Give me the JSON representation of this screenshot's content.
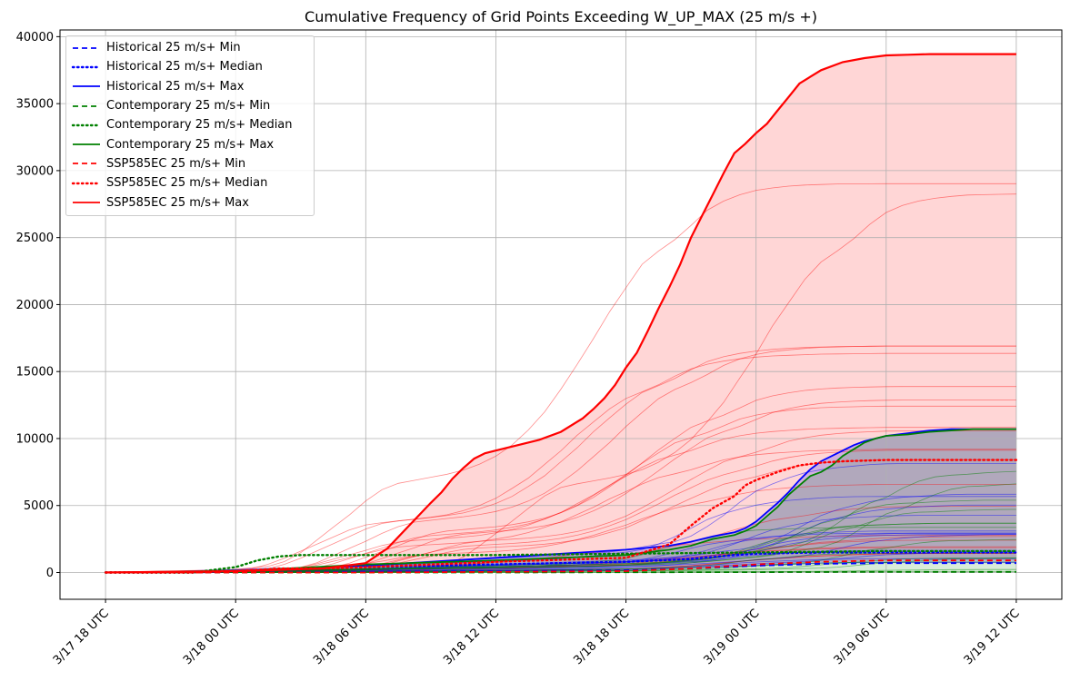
{
  "chart_data": {
    "type": "line",
    "title": "Cumulative Frequency of Grid Points Exceeding W_UP_MAX (25 m/s +)",
    "xlabel": "",
    "ylabel": "",
    "x_tick_labels": [
      "3/17 18 UTC",
      "3/18 00 UTC",
      "3/18 06 UTC",
      "3/18 12 UTC",
      "3/18 18 UTC",
      "3/19 00 UTC",
      "3/19 06 UTC",
      "3/19 12 UTC"
    ],
    "x_hours": [
      0,
      6,
      12,
      18,
      24,
      30,
      36,
      42
    ],
    "xlim": [
      -2.1,
      44.1
    ],
    "ylim": [
      -2000,
      40500
    ],
    "y_ticks": [
      0,
      5000,
      10000,
      15000,
      20000,
      25000,
      30000,
      35000,
      40000
    ],
    "grid": true,
    "legend_position": "top-left",
    "colors": {
      "Historical": "#0000ff",
      "Contemporary": "#008000",
      "SSP585EC": "#ff0000"
    },
    "series": [
      {
        "name": "Historical 25 m/s+ Min",
        "group": "Historical",
        "stat": "Min",
        "style": "dashed",
        "x": [
          0,
          4,
          6,
          12,
          18,
          24,
          27,
          30,
          33,
          36,
          42
        ],
        "y": [
          0,
          0,
          0,
          50,
          100,
          150,
          300,
          500,
          650,
          700,
          700
        ]
      },
      {
        "name": "Historical 25 m/s+ Median",
        "group": "Historical",
        "stat": "Median",
        "style": "dotted",
        "x": [
          0,
          4,
          6,
          9,
          12,
          18,
          24,
          27,
          29,
          30,
          33,
          36,
          42
        ],
        "y": [
          0,
          0,
          100,
          300,
          400,
          600,
          800,
          1000,
          1300,
          1400,
          1500,
          1500,
          1500
        ]
      },
      {
        "name": "Historical 25 m/s+ Max",
        "group": "Historical",
        "stat": "Max",
        "style": "solid",
        "x": [
          0,
          4,
          5,
          6,
          8,
          10,
          12,
          14,
          16,
          18,
          20,
          22,
          24,
          26,
          27,
          28,
          29,
          29.5,
          30,
          30.5,
          31,
          31.5,
          32,
          32.5,
          33,
          33.5,
          34,
          34.5,
          35,
          35.5,
          36,
          37,
          38,
          39,
          40,
          42
        ],
        "y": [
          0,
          0,
          30,
          100,
          200,
          400,
          500,
          700,
          900,
          1100,
          1300,
          1500,
          1700,
          2000,
          2300,
          2700,
          3000,
          3300,
          3800,
          4500,
          5200,
          6000,
          6900,
          7700,
          8300,
          8700,
          9100,
          9500,
          9800,
          10000,
          10200,
          10400,
          10600,
          10700,
          10700,
          10700
        ]
      },
      {
        "name": "Contemporary 25 m/s+ Min",
        "group": "Contemporary",
        "stat": "Min",
        "style": "dashed",
        "x": [
          0,
          6,
          12,
          18,
          24,
          30,
          36,
          42
        ],
        "y": [
          0,
          0,
          0,
          0,
          20,
          30,
          50,
          50
        ]
      },
      {
        "name": "Contemporary 25 m/s+ Median",
        "group": "Contemporary",
        "stat": "Median",
        "style": "dotted",
        "x": [
          0,
          4,
          6,
          7,
          8,
          9,
          12,
          18,
          24,
          30,
          36,
          42
        ],
        "y": [
          0,
          0,
          400,
          900,
          1200,
          1300,
          1300,
          1300,
          1400,
          1500,
          1600,
          1600
        ]
      },
      {
        "name": "Contemporary 25 m/s+ Max",
        "group": "Contemporary",
        "stat": "Max",
        "style": "solid",
        "x": [
          0,
          4,
          6,
          12,
          18,
          24,
          26,
          27,
          28,
          29,
          29.5,
          30,
          30.5,
          31,
          31.5,
          32,
          32.5,
          33,
          33.5,
          34,
          34.5,
          35,
          35.5,
          36,
          37,
          38,
          39,
          40,
          42
        ],
        "y": [
          0,
          0,
          100,
          600,
          900,
          1300,
          1700,
          2000,
          2500,
          2800,
          3100,
          3500,
          4200,
          4900,
          5800,
          6500,
          7200,
          7500,
          8000,
          8700,
          9200,
          9700,
          10000,
          10200,
          10300,
          10500,
          10600,
          10700,
          10700
        ]
      },
      {
        "name": "SSP585EC 25 m/s+ Min",
        "group": "SSP585EC",
        "stat": "Min",
        "style": "dashed",
        "x": [
          0,
          12,
          18,
          24,
          27,
          30,
          33,
          36,
          42
        ],
        "y": [
          0,
          0,
          50,
          100,
          300,
          600,
          800,
          900,
          900
        ]
      },
      {
        "name": "SSP585EC 25 m/s+ Median",
        "group": "SSP585EC",
        "stat": "Median",
        "style": "dotted",
        "x": [
          0,
          4,
          6,
          8,
          10,
          12,
          18,
          24,
          26,
          27,
          28,
          29,
          29.5,
          30,
          31,
          32,
          33,
          34,
          35,
          36,
          42
        ],
        "y": [
          0,
          0,
          100,
          300,
          300,
          400,
          800,
          1100,
          2100,
          3500,
          4800,
          5700,
          6500,
          6900,
          7500,
          8000,
          8200,
          8300,
          8350,
          8400,
          8400
        ]
      },
      {
        "name": "SSP585EC 25 m/s+ Max",
        "group": "SSP585EC",
        "stat": "Max",
        "style": "solid",
        "x": [
          0,
          6,
          10,
          12,
          13,
          14,
          15,
          15.5,
          16,
          16.5,
          17,
          17.5,
          18,
          19,
          20,
          21,
          22,
          22.5,
          23,
          23.5,
          24,
          24.5,
          25,
          25.5,
          26,
          26.5,
          27,
          27.5,
          28,
          28.5,
          29,
          29.5,
          30,
          30.5,
          31,
          31.5,
          32,
          32.5,
          33,
          34,
          35,
          36,
          37,
          38,
          42
        ],
        "y": [
          0,
          100,
          300,
          700,
          1800,
          3500,
          5200,
          6000,
          7000,
          7800,
          8500,
          8900,
          9100,
          9500,
          9900,
          10500,
          11500,
          12200,
          13000,
          14000,
          15300,
          16400,
          18000,
          19700,
          21300,
          23000,
          25000,
          26600,
          28200,
          29800,
          31300,
          32000,
          32800,
          33500,
          34500,
          35500,
          36500,
          37000,
          37500,
          38100,
          38400,
          38600,
          38650,
          38700,
          38700
        ]
      }
    ]
  }
}
